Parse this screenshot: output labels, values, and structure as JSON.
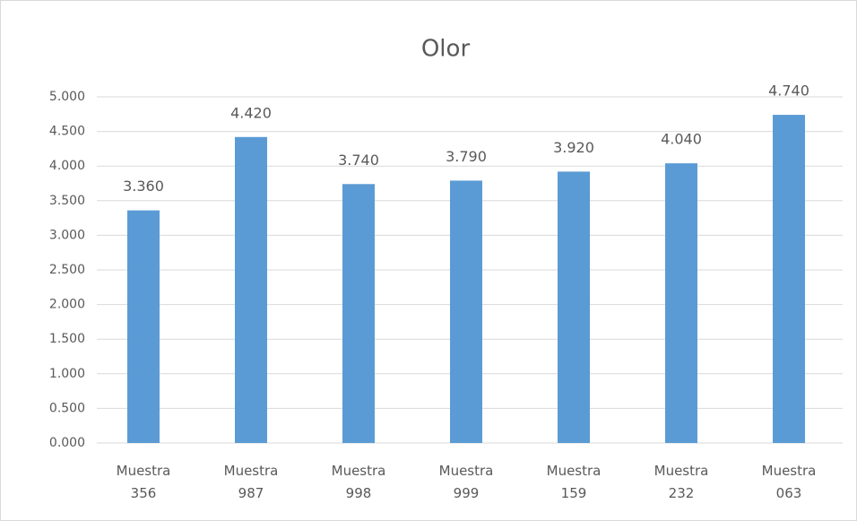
{
  "chart_data": {
    "type": "bar",
    "title": "Olor",
    "categories": [
      "Muestra 356",
      "Muestra 987",
      "Muestra 998",
      "Muestra 999",
      "Muestra 159",
      "Muestra 232",
      "Muestra 063"
    ],
    "values": [
      3.36,
      4.42,
      3.74,
      3.79,
      3.92,
      4.04,
      4.74
    ],
    "value_labels": [
      "3.360",
      "4.420",
      "3.740",
      "3.790",
      "3.920",
      "4.040",
      "4.740"
    ],
    "color": "#5b9bd5",
    "ylim": [
      0,
      5
    ],
    "yticks": [
      {
        "value": 0,
        "label": "0.000"
      },
      {
        "value": 0.5,
        "label": "0.500"
      },
      {
        "value": 1,
        "label": "1.000"
      },
      {
        "value": 1.5,
        "label": "1.500"
      },
      {
        "value": 2,
        "label": "2.000"
      },
      {
        "value": 2.5,
        "label": "2.500"
      },
      {
        "value": 3,
        "label": "3.000"
      },
      {
        "value": 3.5,
        "label": "3.500"
      },
      {
        "value": 4,
        "label": "4.000"
      },
      {
        "value": 4.5,
        "label": "4.500"
      },
      {
        "value": 5,
        "label": "5.000"
      }
    ],
    "grid": true
  }
}
